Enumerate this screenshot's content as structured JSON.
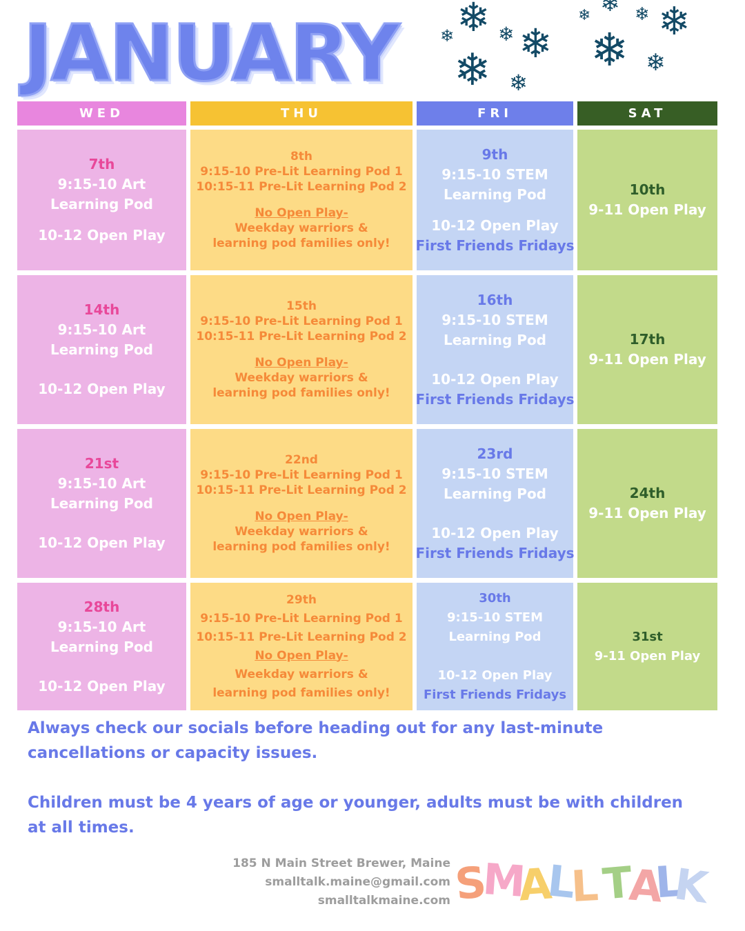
{
  "title": "JANUARY",
  "decor": {
    "snowflake_icon": "snowflake-icon",
    "color": "#134a66"
  },
  "days": [
    {
      "label": "WED",
      "color": "#e886de"
    },
    {
      "label": "THU",
      "color": "#f6c233"
    },
    {
      "label": "FRI",
      "color": "#6e7fea"
    },
    {
      "label": "SAT",
      "color": "#375e25"
    }
  ],
  "weeks": [
    {
      "wed": {
        "date": "7th",
        "line1": "9:15-10 Art",
        "line2": "Learning Pod",
        "line3": "10-12 Open Play"
      },
      "thu": {
        "date": "8th",
        "line1": "9:15-10 Pre-Lit Learning Pod 1",
        "line2": "10:15-11 Pre-Lit Learning Pod 2",
        "line3": "No Open Play-",
        "line4": "Weekday warriors &",
        "line5": "learning pod families only!"
      },
      "fri": {
        "date": "9th",
        "line1": "9:15-10 STEM",
        "line2": "Learning Pod",
        "line3": "10-12 Open Play",
        "line4": "First Friends Fridays"
      },
      "sat": {
        "date": "10th",
        "line1": "9-11 Open Play"
      }
    },
    {
      "wed": {
        "date": "14th",
        "line1": "9:15-10 Art",
        "line2": "Learning Pod",
        "line3": "10-12 Open Play"
      },
      "thu": {
        "date": "15th",
        "line1": "9:15-10 Pre-Lit Learning Pod 1",
        "line2": "10:15-11 Pre-Lit Learning Pod 2",
        "line3": "No Open Play-",
        "line4": "Weekday warriors &",
        "line5": "learning pod families only!"
      },
      "fri": {
        "date": "16th",
        "line1": "9:15-10 STEM",
        "line2": "Learning Pod",
        "line3": "10-12 Open Play",
        "line4": "First Friends Fridays"
      },
      "sat": {
        "date": "17th",
        "line1": "9-11 Open Play"
      }
    },
    {
      "wed": {
        "date": "21st",
        "line1": "9:15-10 Art",
        "line2": "Learning Pod",
        "line3": "10-12 Open Play"
      },
      "thu": {
        "date": "22nd",
        "line1": "9:15-10 Pre-Lit Learning Pod 1",
        "line2": "10:15-11 Pre-Lit Learning Pod 2",
        "line3": "No Open Play-",
        "line4": "Weekday warriors &",
        "line5": "learning pod families only!"
      },
      "fri": {
        "date": "23rd",
        "line1": "9:15-10 STEM",
        "line2": "Learning Pod",
        "line3": "10-12 Open Play",
        "line4": "First Friends Fridays"
      },
      "sat": {
        "date": "24th",
        "line1": "9-11 Open Play"
      }
    },
    {
      "wed": {
        "date": "28th",
        "line1": "9:15-10 Art",
        "line2": "Learning Pod",
        "line3": "10-12 Open Play"
      },
      "thu": {
        "date": "29th",
        "line1": "9:15-10 Pre-Lit Learning Pod 1",
        "line2": "10:15-11 Pre-Lit Learning Pod 2",
        "line3": "No Open Play-",
        "line4": "Weekday warriors &",
        "line5": "learning pod families only!"
      },
      "fri": {
        "date": "30th",
        "line1": "9:15-10 STEM",
        "line2": "Learning Pod",
        "line3": "10-12 Open Play",
        "line4": "First Friends Fridays"
      },
      "sat": {
        "date": "31st",
        "line1": "9-11 Open Play"
      }
    }
  ],
  "notes": {
    "line1": "Always check our socials before heading out for any last-minute",
    "line2": "cancellations or capacity issues.",
    "line3": "Children must be 4 years of age or younger, adults must be with children",
    "line4": "at all times."
  },
  "contact": {
    "address": "185 N Main Street Brewer, Maine",
    "email": "smalltalk.maine@gmail.com",
    "website": "smalltalkmaine.com"
  },
  "logo": {
    "text": "SMALL TALK"
  }
}
